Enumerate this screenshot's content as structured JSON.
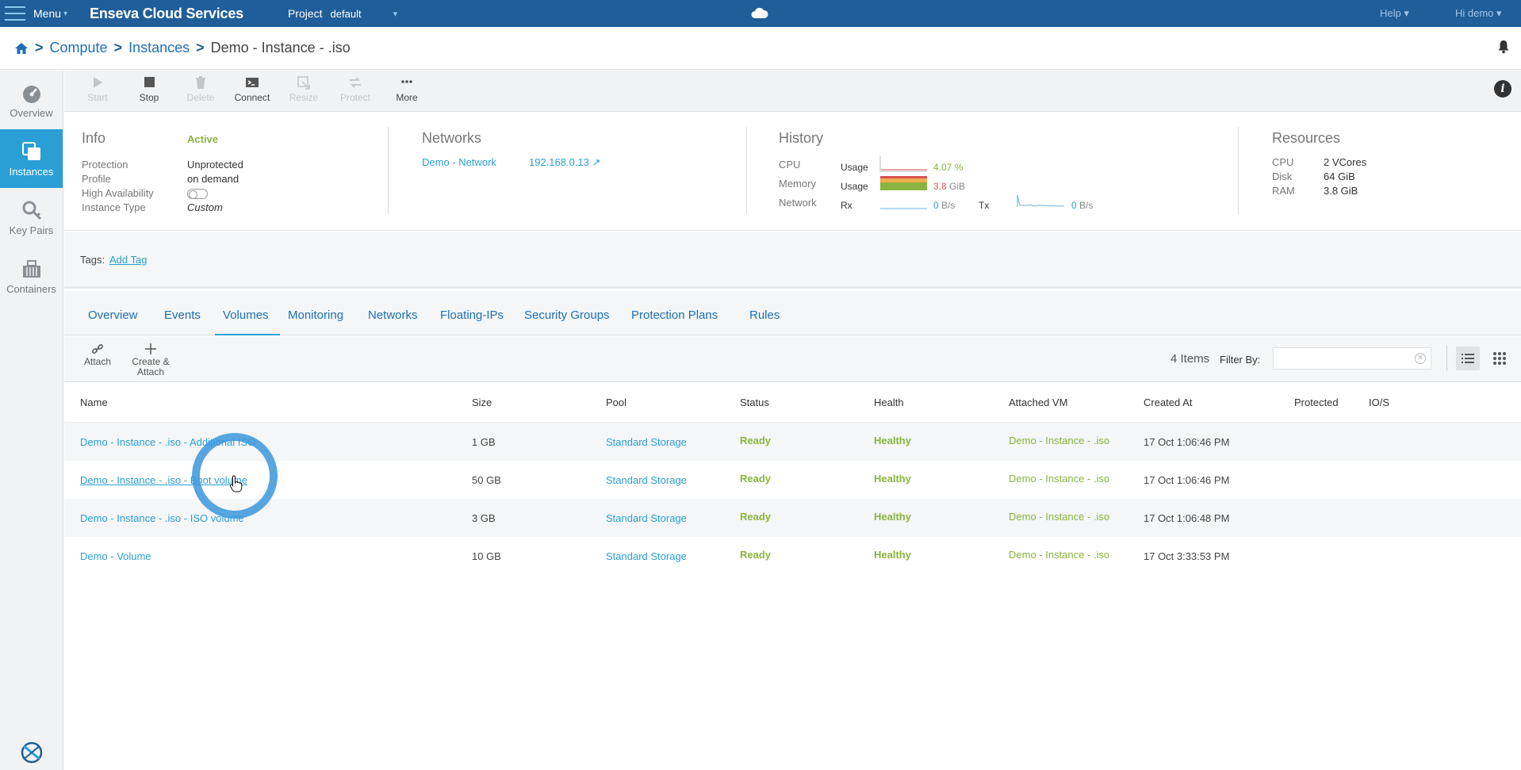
{
  "topbar": {
    "menu_label": "Menu",
    "brand": "Enseva Cloud Services",
    "project_label": "Project",
    "project_value": "default",
    "help_label": "Help",
    "user_label": "Hi demo"
  },
  "breadcrumb": {
    "items": [
      "Compute",
      "Instances"
    ],
    "current": "Demo - Instance - .iso"
  },
  "sidebar": {
    "items": [
      {
        "label": "Overview",
        "icon": "dashboard-icon",
        "active": false
      },
      {
        "label": "Instances",
        "icon": "instances-icon",
        "active": true
      },
      {
        "label": "Key Pairs",
        "icon": "key-icon",
        "active": false
      },
      {
        "label": "Containers",
        "icon": "container-icon",
        "active": false
      }
    ]
  },
  "toolbar": {
    "start": "Start",
    "stop": "Stop",
    "delete": "Delete",
    "connect": "Connect",
    "resize": "Resize",
    "protect": "Protect",
    "more": "More"
  },
  "info": {
    "title": "Info",
    "status": "Active",
    "protection_label": "Protection",
    "protection_value": "Unprotected",
    "profile_label": "Profile",
    "profile_value": "on demand",
    "ha_label": "High Availability",
    "type_label": "Instance Type",
    "type_value": "Custom"
  },
  "networks": {
    "title": "Networks",
    "network_name": "Demo - Network",
    "ip": "192.168.0.13"
  },
  "history": {
    "title": "History",
    "cpu_label": "CPU",
    "memory_label": "Memory",
    "network_label": "Network",
    "usage_label": "Usage",
    "cpu_value": "4.07",
    "cpu_unit": "%",
    "mem_value": "3.8",
    "mem_unit": "GiB",
    "rx_label": "Rx",
    "rx_value": "0",
    "rx_unit": "B/s",
    "tx_label": "Tx",
    "tx_value": "0",
    "tx_unit": "B/s"
  },
  "resources": {
    "title": "Resources",
    "cpu_label": "CPU",
    "cpu_value": "2 VCores",
    "disk_label": "Disk",
    "disk_value": "64 GiB",
    "ram_label": "RAM",
    "ram_value": "3.8 GiB"
  },
  "tags": {
    "label": "Tags:",
    "add_link": "Add Tag"
  },
  "tabs": [
    "Overview",
    "Events",
    "Volumes",
    "Monitoring",
    "Networks",
    "Floating-IPs",
    "Security Groups",
    "Protection Plans",
    "Rules"
  ],
  "active_tab": "Volumes",
  "subtoolbar": {
    "attach": "Attach",
    "create_attach_1": "Create &",
    "create_attach_2": "Attach",
    "items_count": "4 Items",
    "filter_label": "Filter By:",
    "filter_value": ""
  },
  "table": {
    "headers": [
      "Name",
      "Size",
      "Pool",
      "Status",
      "Health",
      "Attached VM",
      "Created At",
      "Protected",
      "IO/S"
    ],
    "rows": [
      {
        "name": "Demo - Instance - .iso - Additional ISO",
        "size": "1 GB",
        "pool": "Standard Storage",
        "status": "Ready",
        "health": "Healthy",
        "vm": "Demo - Instance - .iso",
        "created": "17 Oct 1:06:46 PM"
      },
      {
        "name": "Demo - Instance - .iso - Boot volume",
        "size": "50 GB",
        "pool": "Standard Storage",
        "status": "Ready",
        "health": "Healthy",
        "vm": "Demo - Instance - .iso",
        "created": "17 Oct 1:06:46 PM"
      },
      {
        "name": "Demo - Instance - .iso - ISO volume",
        "size": "3 GB",
        "pool": "Standard Storage",
        "status": "Ready",
        "health": "Healthy",
        "vm": "Demo - Instance - .iso",
        "created": "17 Oct 1:06:48 PM"
      },
      {
        "name": "Demo - Volume",
        "size": "10 GB",
        "pool": "Standard Storage",
        "status": "Ready",
        "health": "Healthy",
        "vm": "Demo - Instance - .iso",
        "created": "17 Oct 3:33:53 PM"
      }
    ]
  },
  "colors": {
    "topbar": "#1f5e98",
    "accent": "#2a9fd6",
    "ok_green": "#8ab43e",
    "mem_red": "#d9534f"
  }
}
